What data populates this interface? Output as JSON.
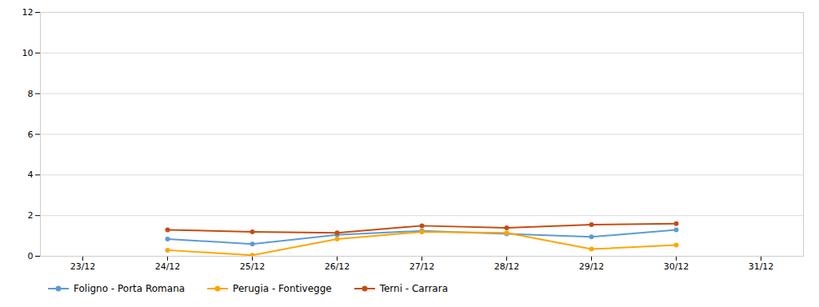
{
  "chart_data": {
    "type": "line",
    "categories": [
      "23/12",
      "24/12",
      "25/12",
      "26/12",
      "27/12",
      "28/12",
      "29/12",
      "30/12",
      "31/12"
    ],
    "series": [
      {
        "name": "Foligno - Porta Romana",
        "color": "#5b9bd5",
        "marker": "o",
        "values": [
          null,
          0.85,
          0.6,
          1.05,
          1.25,
          1.1,
          0.95,
          1.3,
          null
        ]
      },
      {
        "name": "Perugia - Fontivegge",
        "color": "#ffa500",
        "marker": "o",
        "values": [
          null,
          0.3,
          0.05,
          0.85,
          1.2,
          1.15,
          0.35,
          0.55,
          null
        ]
      },
      {
        "name": "Terni - Carrara",
        "color": "#c84b11",
        "marker": "o",
        "values": [
          null,
          1.3,
          1.2,
          1.15,
          1.5,
          1.4,
          1.55,
          1.6,
          null
        ]
      }
    ],
    "ylim": [
      0,
      12
    ],
    "yticks": [
      0,
      2,
      4,
      6,
      8,
      10,
      12
    ],
    "grid": true,
    "legend": "bottom"
  }
}
